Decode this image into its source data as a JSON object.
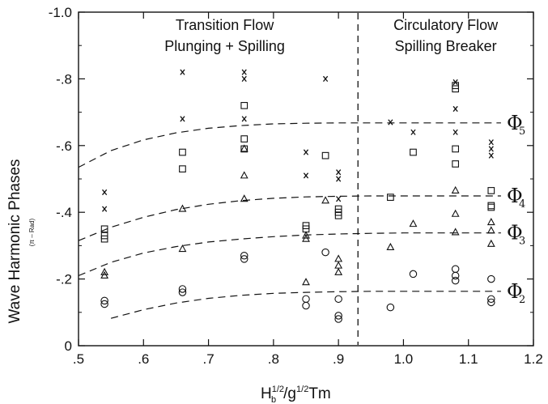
{
  "chart_data": {
    "type": "scatter",
    "title": "",
    "ylabel": "Wave Harmonic Phases",
    "ylabel_unit": "(π – Rad)",
    "xlabel_base": "H",
    "xlabel_sub_b": "b",
    "xlabel_sup1": "1/2",
    "xlabel_mid": "/g",
    "xlabel_sup2": "1/2",
    "xlabel_end": "Tm",
    "xlim": [
      0.5,
      1.2
    ],
    "ylim": [
      0,
      -1.0
    ],
    "x_ticks": [
      0.5,
      0.6,
      0.7,
      0.8,
      0.9,
      1.0,
      1.1,
      1.2
    ],
    "x_tick_labels": [
      ".5",
      ".6",
      ".7",
      ".8",
      ".9",
      "1.0",
      "1.1",
      "1.2"
    ],
    "y_ticks": [
      0,
      -0.2,
      -0.4,
      -0.6,
      -0.8,
      -1.0
    ],
    "y_tick_labels": [
      "0",
      "-.2",
      "-.4",
      "-.6",
      "-.8",
      "-1.0"
    ],
    "grid": false,
    "divider_x": 0.93,
    "region_labels": {
      "left_line1": "Transition Flow",
      "left_line2": "Plunging + Spilling",
      "right_line1": "Circulatory Flow",
      "right_line2": "Spilling Breaker"
    },
    "curve_symbol": "Φ",
    "curves": [
      {
        "id": "5",
        "x": [
          0.5,
          0.55,
          0.6,
          0.65,
          0.7,
          0.75,
          0.8,
          0.85,
          0.9,
          0.95,
          1.0,
          1.1,
          1.15
        ],
        "y": [
          -0.535,
          -0.585,
          -0.617,
          -0.638,
          -0.652,
          -0.66,
          -0.665,
          -0.667,
          -0.668,
          -0.668,
          -0.668,
          -0.668,
          -0.668
        ]
      },
      {
        "id": "4",
        "x": [
          0.5,
          0.55,
          0.6,
          0.65,
          0.7,
          0.75,
          0.8,
          0.85,
          0.9,
          0.95,
          1.0,
          1.1,
          1.15
        ],
        "y": [
          -0.315,
          -0.355,
          -0.385,
          -0.408,
          -0.424,
          -0.435,
          -0.442,
          -0.446,
          -0.448,
          -0.449,
          -0.449,
          -0.449,
          -0.449
        ]
      },
      {
        "id": "3",
        "x": [
          0.5,
          0.55,
          0.6,
          0.65,
          0.7,
          0.75,
          0.8,
          0.85,
          0.9,
          0.95,
          1.0,
          1.1,
          1.15
        ],
        "y": [
          -0.21,
          -0.25,
          -0.278,
          -0.297,
          -0.311,
          -0.32,
          -0.327,
          -0.332,
          -0.335,
          -0.337,
          -0.338,
          -0.338,
          -0.338
        ]
      },
      {
        "id": "2",
        "x": [
          0.55,
          0.6,
          0.65,
          0.7,
          0.75,
          0.8,
          0.85,
          0.9,
          0.95,
          1.0,
          1.1,
          1.15
        ],
        "y": [
          -0.082,
          -0.108,
          -0.128,
          -0.142,
          -0.151,
          -0.157,
          -0.16,
          -0.162,
          -0.163,
          -0.163,
          -0.163,
          -0.163
        ]
      }
    ],
    "series": [
      {
        "marker": "x",
        "points": [
          [
            0.54,
            -0.46
          ],
          [
            0.54,
            -0.41
          ],
          [
            0.66,
            -0.82
          ],
          [
            0.66,
            -0.68
          ],
          [
            0.755,
            -0.82
          ],
          [
            0.755,
            -0.8
          ],
          [
            0.755,
            -0.68
          ],
          [
            0.85,
            -0.58
          ],
          [
            0.85,
            -0.51
          ],
          [
            0.88,
            -0.8
          ],
          [
            0.9,
            -0.52
          ],
          [
            0.9,
            -0.5
          ],
          [
            0.9,
            -0.44
          ],
          [
            0.98,
            -0.67
          ],
          [
            1.015,
            -0.64
          ],
          [
            1.08,
            -0.79
          ],
          [
            1.08,
            -0.71
          ],
          [
            1.08,
            -0.64
          ],
          [
            1.135,
            -0.61
          ],
          [
            1.135,
            -0.59
          ],
          [
            1.135,
            -0.57
          ]
        ]
      },
      {
        "marker": "square",
        "points": [
          [
            0.54,
            -0.35
          ],
          [
            0.54,
            -0.33
          ],
          [
            0.54,
            -0.32
          ],
          [
            0.66,
            -0.58
          ],
          [
            0.66,
            -0.53
          ],
          [
            0.755,
            -0.72
          ],
          [
            0.755,
            -0.62
          ],
          [
            0.755,
            -0.59
          ],
          [
            0.85,
            -0.36
          ],
          [
            0.85,
            -0.35
          ],
          [
            0.88,
            -0.57
          ],
          [
            0.9,
            -0.41
          ],
          [
            0.9,
            -0.4
          ],
          [
            0.9,
            -0.39
          ],
          [
            0.98,
            -0.445
          ],
          [
            1.015,
            -0.58
          ],
          [
            1.08,
            -0.78
          ],
          [
            1.08,
            -0.77
          ],
          [
            1.08,
            -0.59
          ],
          [
            1.08,
            -0.545
          ],
          [
            1.135,
            -0.465
          ],
          [
            1.135,
            -0.42
          ],
          [
            1.135,
            -0.415
          ]
        ]
      },
      {
        "marker": "triangle",
        "points": [
          [
            0.54,
            -0.22
          ],
          [
            0.54,
            -0.21
          ],
          [
            0.66,
            -0.41
          ],
          [
            0.66,
            -0.29
          ],
          [
            0.755,
            -0.59
          ],
          [
            0.755,
            -0.51
          ],
          [
            0.755,
            -0.44
          ],
          [
            0.85,
            -0.33
          ],
          [
            0.85,
            -0.32
          ],
          [
            0.85,
            -0.19
          ],
          [
            0.88,
            -0.435
          ],
          [
            0.9,
            -0.26
          ],
          [
            0.9,
            -0.24
          ],
          [
            0.9,
            -0.22
          ],
          [
            0.98,
            -0.295
          ],
          [
            1.015,
            -0.365
          ],
          [
            1.08,
            -0.465
          ],
          [
            1.08,
            -0.395
          ],
          [
            1.08,
            -0.34
          ],
          [
            1.135,
            -0.37
          ],
          [
            1.135,
            -0.345
          ],
          [
            1.135,
            -0.305
          ]
        ]
      },
      {
        "marker": "circle",
        "points": [
          [
            0.54,
            -0.135
          ],
          [
            0.54,
            -0.125
          ],
          [
            0.66,
            -0.17
          ],
          [
            0.66,
            -0.16
          ],
          [
            0.755,
            -0.27
          ],
          [
            0.755,
            -0.26
          ],
          [
            0.85,
            -0.14
          ],
          [
            0.85,
            -0.12
          ],
          [
            0.88,
            -0.28
          ],
          [
            0.9,
            -0.14
          ],
          [
            0.9,
            -0.09
          ],
          [
            0.9,
            -0.08
          ],
          [
            0.98,
            -0.115
          ],
          [
            1.015,
            -0.215
          ],
          [
            1.08,
            -0.23
          ],
          [
            1.08,
            -0.21
          ],
          [
            1.08,
            -0.195
          ],
          [
            1.135,
            -0.2
          ],
          [
            1.135,
            -0.14
          ],
          [
            1.135,
            -0.13
          ]
        ]
      }
    ]
  }
}
